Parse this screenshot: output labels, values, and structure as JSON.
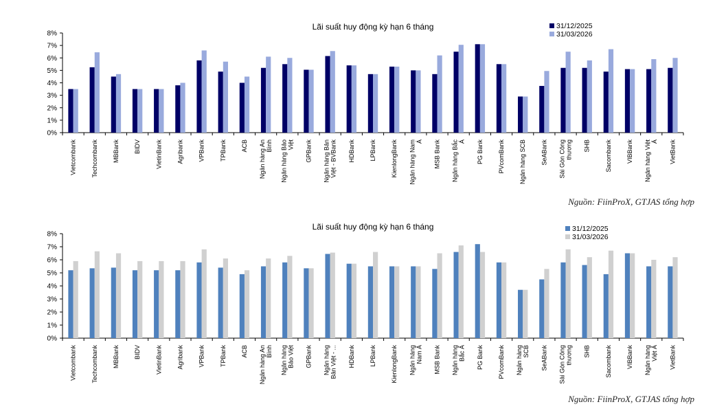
{
  "chart_data": [
    {
      "type": "bar",
      "title": "Lãi suất huy động kỳ hạn 6 tháng",
      "source": "Nguồn: FiinProX, GTJAS tổng hợp",
      "categories": [
        "Vietcombank",
        "Techcombank",
        "MBBank",
        "BIDV",
        "VietinBank",
        "Agribank",
        "VPBank",
        "TPBank",
        "ACB",
        "Ngân hàng An Bình",
        "Ngân hàng Bảo Việt",
        "GPBank",
        "Ngân hàng Bản Việt - BVBank",
        "HDBank",
        "LPBank",
        "KienlongBank",
        "Ngân hàng Nam Á",
        "MSB Bank",
        "Ngân hàng Bắc Á",
        "PG Bank",
        "PVcomBank",
        "Ngân hàng SCB",
        "SeABank",
        "Sài Gòn Công thương",
        "SHB",
        "Sacombank",
        "VIBBank",
        "Ngân hàng Việt Á",
        "VietBank"
      ],
      "category_lines": [
        [
          "Vietcombank"
        ],
        [
          "Techcombank"
        ],
        [
          "MBBank"
        ],
        [
          "BIDV"
        ],
        [
          "VietinBank"
        ],
        [
          "Agribank"
        ],
        [
          "VPBank"
        ],
        [
          "TPBank"
        ],
        [
          "ACB"
        ],
        [
          "Ngân hàng An",
          "Bình"
        ],
        [
          "Ngân hàng Bảo",
          "Việt"
        ],
        [
          "GPBank"
        ],
        [
          "Ngân hàng Bản",
          "Việt - BVBank"
        ],
        [
          "HDBank"
        ],
        [
          "LPBank"
        ],
        [
          "KienlongBank"
        ],
        [
          "Ngân hàng Nam",
          "Á"
        ],
        [
          "MSB Bank"
        ],
        [
          "Ngân hàng Bắc",
          "Á"
        ],
        [
          "PG Bank"
        ],
        [
          "PVcomBank"
        ],
        [
          "Ngân hàng SCB"
        ],
        [
          "SeABank"
        ],
        [
          "Sài Gòn Công",
          "thương"
        ],
        [
          "SHB"
        ],
        [
          "Sacombank"
        ],
        [
          "VIBBank"
        ],
        [
          "Ngân hàng Việt",
          "Á"
        ],
        [
          "VietBank"
        ]
      ],
      "series": [
        {
          "name": "31/12/2025",
          "color": "#000066",
          "values": [
            3.5,
            5.25,
            4.5,
            3.5,
            3.5,
            3.8,
            5.8,
            4.9,
            4.0,
            5.2,
            5.5,
            5.05,
            6.15,
            5.4,
            4.7,
            5.3,
            5.0,
            4.7,
            6.5,
            7.1,
            5.5,
            2.9,
            3.75,
            5.2,
            5.2,
            4.9,
            5.1,
            5.1,
            5.2
          ]
        },
        {
          "name": "31/03/2026",
          "color": "#99aadd",
          "values": [
            3.5,
            6.45,
            4.7,
            3.5,
            3.5,
            4.0,
            6.6,
            5.7,
            4.5,
            6.1,
            6.0,
            5.05,
            6.55,
            5.4,
            4.7,
            5.3,
            5.0,
            6.2,
            7.05,
            7.1,
            5.5,
            2.9,
            4.95,
            6.5,
            5.8,
            6.7,
            5.1,
            5.9,
            6.0
          ]
        }
      ],
      "yticks": [
        "0%",
        "1%",
        "2%",
        "3%",
        "4%",
        "5%",
        "6%",
        "7%",
        "8%"
      ],
      "ylim": [
        0,
        8
      ],
      "legend": "top-right"
    },
    {
      "type": "bar",
      "title": "Lãi suất huy động kỳ hạn 6 tháng",
      "source": "Nguồn: FiinProX, GTJAS tổng hợp",
      "categories": [
        "Vietcombank",
        "Techcombank",
        "MBBank",
        "BIDV",
        "VietinBank",
        "Agribank",
        "VPBank",
        "TPBank",
        "ACB",
        "Ngân hàng An Bình",
        "Ngân hàng Bảo Việt",
        "GPBank",
        "Ngân hàng Bản Việt - ...",
        "HDBank",
        "LPBank",
        "KienlongBank",
        "Ngân hàng Nam Á",
        "MSB Bank",
        "Ngân hàng Bắc Á",
        "PG Bank",
        "PVcomBank",
        "Ngân hàng SCB",
        "SeABank",
        "Sài Gòn Công thương",
        "SHB",
        "Sacombank",
        "VIBBank",
        "Ngân hàng Việt Á",
        "VietBank"
      ],
      "category_lines": [
        [
          "Vietcombank"
        ],
        [
          "Techcombank"
        ],
        [
          "MBBank"
        ],
        [
          "BIDV"
        ],
        [
          "VietinBank"
        ],
        [
          "Agribank"
        ],
        [
          "VPBank"
        ],
        [
          "TPBank"
        ],
        [
          "ACB"
        ],
        [
          "Ngân hàng An",
          "Bình"
        ],
        [
          "Ngân hàng",
          "Bảo Việt"
        ],
        [
          "GPBank"
        ],
        [
          "Ngân hàng",
          "Bản Việt - ..."
        ],
        [
          "HDBank"
        ],
        [
          "LPBank"
        ],
        [
          "KienlongBank"
        ],
        [
          "Ngân hàng",
          "Nam Á"
        ],
        [
          "MSB Bank"
        ],
        [
          "Ngân hàng",
          "Bắc Á"
        ],
        [
          "PG Bank"
        ],
        [
          "PVcomBank"
        ],
        [
          "Ngân hàng",
          "SCB"
        ],
        [
          "SeABank"
        ],
        [
          "Sài Gòn Công",
          "thương"
        ],
        [
          "SHB"
        ],
        [
          "Sacombank"
        ],
        [
          "VIBBank"
        ],
        [
          "Ngân hàng",
          "Việt Á"
        ],
        [
          "VietBank"
        ]
      ],
      "series": [
        {
          "name": "31/12/2025",
          "color": "#4f81bd",
          "values": [
            5.2,
            5.35,
            5.4,
            5.2,
            5.2,
            5.2,
            5.8,
            5.4,
            4.9,
            5.5,
            5.8,
            5.35,
            6.45,
            5.7,
            5.5,
            5.5,
            5.5,
            5.3,
            6.6,
            7.2,
            5.8,
            3.7,
            4.5,
            5.8,
            5.6,
            4.9,
            6.5,
            5.5,
            5.5
          ]
        },
        {
          "name": "31/03/2026",
          "color": "#d0d0d0",
          "values": [
            5.9,
            6.65,
            6.5,
            5.9,
            5.9,
            5.9,
            6.8,
            6.1,
            5.2,
            6.1,
            6.3,
            5.35,
            6.55,
            5.7,
            6.6,
            5.5,
            5.5,
            6.5,
            7.1,
            6.6,
            5.8,
            3.7,
            5.3,
            6.8,
            6.2,
            6.7,
            6.5,
            6.0,
            6.2
          ]
        }
      ],
      "yticks": [
        "0%",
        "1%",
        "2%",
        "3%",
        "4%",
        "5%",
        "6%",
        "7%",
        "8%"
      ],
      "ylim": [
        0,
        8
      ],
      "legend": "top-right"
    }
  ]
}
